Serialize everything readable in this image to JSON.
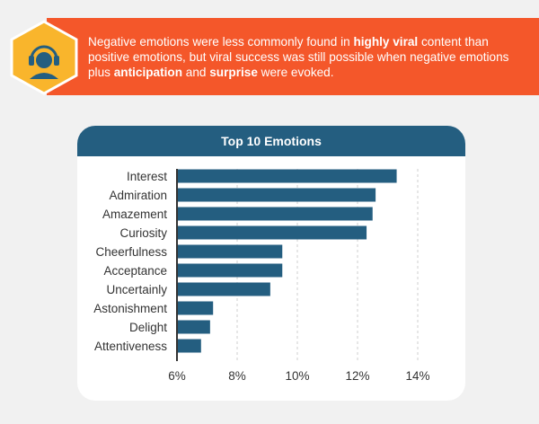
{
  "banner": {
    "segments": [
      {
        "text": "Negative emotions were less commonly found in ",
        "bold": false
      },
      {
        "text": "highly viral",
        "bold": true
      },
      {
        "text": " content than positive emotions, but viral success was still possible when negative emotions plus ",
        "bold": false
      },
      {
        "text": "anticipation",
        "bold": true
      },
      {
        "text": " and ",
        "bold": false
      },
      {
        "text": "surprise",
        "bold": true
      },
      {
        "text": " were evoked.",
        "bold": false
      }
    ],
    "icon": "headset-person-icon"
  },
  "colors": {
    "banner": "#f4572a",
    "hexagon": "#f9b52c",
    "icon": "#245e80",
    "bar": "#245e80",
    "header": "#245e80"
  },
  "chart_data": {
    "type": "bar",
    "orientation": "horizontal",
    "title": "Top 10 Emotions",
    "categories": [
      "Interest",
      "Admiration",
      "Amazement",
      "Curiosity",
      "Cheerfulness",
      "Acceptance",
      "Uncertainly",
      "Astonishment",
      "Delight",
      "Attentiveness"
    ],
    "values": [
      13.3,
      12.6,
      12.5,
      12.3,
      9.5,
      9.5,
      9.1,
      7.2,
      7.1,
      6.8
    ],
    "xlim": [
      6,
      14
    ],
    "xticks": [
      "6%",
      "8%",
      "10%",
      "12%",
      "14%"
    ],
    "xtick_values": [
      6,
      8,
      10,
      12,
      14
    ],
    "grid": "vertical-dashed",
    "legend": "none"
  }
}
